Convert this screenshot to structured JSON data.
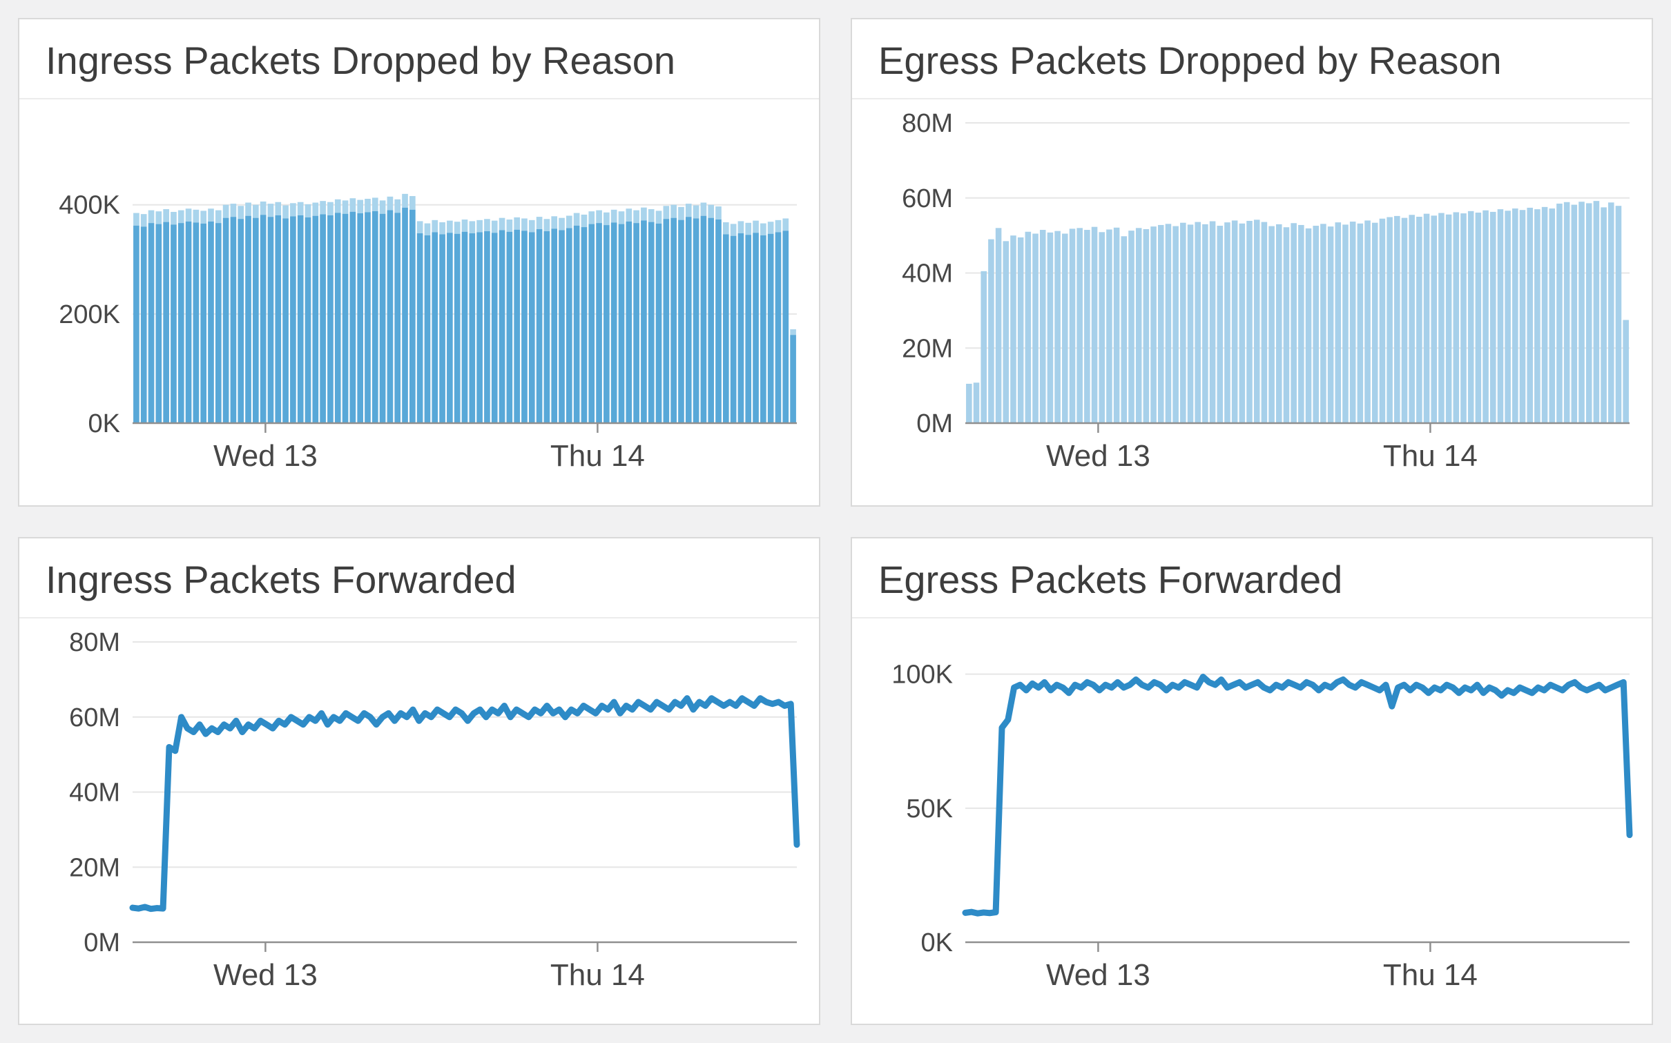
{
  "page": {
    "background_color": "#f1f1f2",
    "panel_background": "#ffffff",
    "panel_border_color": "#d9d9d9",
    "axis_color": "#8f8f8f",
    "grid_color": "#e6e6e6",
    "label_color": "#474747"
  },
  "chart_data": [
    {
      "type": "bar",
      "title": "Ingress Packets Dropped by Reason",
      "unit": "K",
      "ylim": [
        0,
        550
      ],
      "ytick_values": [
        0,
        200,
        400
      ],
      "ytick_labels": [
        "0K",
        "200K",
        "400K"
      ],
      "xticks": [
        {
          "label": "Wed 13",
          "pos": 0.2
        },
        {
          "label": "Thu 14",
          "pos": 0.7
        }
      ],
      "bar_color": "#58a8d8",
      "bar_cap_color": "#a9d4ec",
      "cap_fraction": 0.06,
      "grid": true,
      "legend": "none",
      "values": [
        385,
        383,
        390,
        388,
        392,
        387,
        390,
        393,
        391,
        389,
        393,
        390,
        400,
        402,
        398,
        404,
        400,
        406,
        402,
        405,
        399,
        403,
        405,
        401,
        404,
        407,
        405,
        410,
        408,
        412,
        409,
        411,
        413,
        408,
        415,
        410,
        420,
        416,
        370,
        366,
        372,
        368,
        371,
        369,
        373,
        370,
        372,
        374,
        371,
        376,
        373,
        377,
        375,
        372,
        378,
        374,
        379,
        376,
        380,
        385,
        382,
        388,
        390,
        386,
        391,
        388,
        393,
        390,
        395,
        392,
        389,
        398,
        400,
        396,
        402,
        399,
        404,
        400,
        397,
        368,
        365,
        370,
        367,
        371,
        366,
        369,
        372,
        375,
        172
      ]
    },
    {
      "type": "bar",
      "title": "Egress Packets Dropped by Reason",
      "unit": "M",
      "ylim": [
        0,
        80
      ],
      "ytick_values": [
        0,
        20,
        40,
        60,
        80
      ],
      "ytick_labels": [
        "0M",
        "20M",
        "40M",
        "60M",
        "80M"
      ],
      "xticks": [
        {
          "label": "Wed 13",
          "pos": 0.2
        },
        {
          "label": "Thu 14",
          "pos": 0.7
        }
      ],
      "bar_color": "#a7d0ea",
      "grid": true,
      "legend": "none",
      "values": [
        10.5,
        10.8,
        40.5,
        49,
        52,
        48.5,
        50,
        49.5,
        51,
        50.5,
        51.5,
        50.8,
        51.2,
        50.5,
        51.8,
        52,
        51.5,
        52.3,
        50.9,
        51.6,
        52.1,
        49.8,
        51.3,
        52,
        51.7,
        52.4,
        52.8,
        53.1,
        52.5,
        53.4,
        52.9,
        53.6,
        53,
        53.8,
        52.6,
        53.5,
        54,
        53.2,
        53.9,
        54.2,
        53.6,
        52.5,
        53,
        52.2,
        53.3,
        52.8,
        51.9,
        52.6,
        53.1,
        52.4,
        53.5,
        52.9,
        53.7,
        53.2,
        54,
        53.4,
        54.5,
        54.9,
        55.2,
        54.7,
        55.5,
        55,
        55.8,
        55.3,
        56,
        55.6,
        56.2,
        55.9,
        56.5,
        56.1,
        56.7,
        56.3,
        57,
        56.6,
        57.2,
        56.8,
        57.4,
        57,
        57.6,
        57.2,
        58.5,
        58.9,
        58.2,
        59,
        58.6,
        59.2,
        57.5,
        58.8,
        57.9,
        27.5
      ]
    },
    {
      "type": "line",
      "title": "Ingress Packets Forwarded",
      "unit": "M",
      "ylim": [
        0,
        80
      ],
      "ytick_values": [
        0,
        20,
        40,
        60,
        80
      ],
      "ytick_labels": [
        "0M",
        "20M",
        "40M",
        "60M",
        "80M"
      ],
      "xticks": [
        {
          "label": "Wed 13",
          "pos": 0.2
        },
        {
          "label": "Thu 14",
          "pos": 0.7
        }
      ],
      "line_color": "#2e8bc7",
      "line_width": 9,
      "grid": true,
      "legend": "none",
      "values": [
        9.2,
        9,
        9.4,
        8.9,
        9.1,
        9,
        52,
        51,
        60,
        57,
        56,
        58,
        55.5,
        57,
        56,
        58,
        57,
        59,
        56,
        58,
        57,
        59,
        58,
        57,
        59,
        58,
        60,
        59,
        58,
        60,
        59,
        61,
        58,
        60,
        59,
        61,
        60,
        59,
        61,
        60,
        58,
        60,
        61,
        59,
        61,
        60,
        62,
        59,
        61,
        60,
        62,
        61,
        60,
        62,
        61,
        59,
        61,
        62,
        60,
        62,
        61,
        63,
        60,
        62,
        61,
        60,
        62,
        61,
        63,
        61,
        62,
        60,
        62,
        61,
        63,
        62,
        61,
        63,
        62,
        64,
        61,
        63,
        62,
        64,
        63,
        62,
        64,
        63,
        62,
        64,
        63,
        65,
        62,
        64,
        63,
        65,
        64,
        63,
        64,
        63,
        65,
        64,
        63,
        65,
        64,
        63.5,
        64,
        63,
        63.5,
        26
      ]
    },
    {
      "type": "line",
      "title": "Egress Packets Forwarded",
      "unit": "K",
      "ylim": [
        0,
        112
      ],
      "ytick_values": [
        0,
        50,
        100
      ],
      "ytick_labels": [
        "0K",
        "50K",
        "100K"
      ],
      "xticks": [
        {
          "label": "Wed 13",
          "pos": 0.2
        },
        {
          "label": "Thu 14",
          "pos": 0.7
        }
      ],
      "line_color": "#2e8bc7",
      "line_width": 9,
      "grid": true,
      "legend": "none",
      "values": [
        11,
        11.3,
        10.8,
        11.1,
        10.9,
        11.2,
        80,
        83,
        95,
        96,
        94,
        96.5,
        95,
        97,
        94,
        96,
        95,
        93,
        96,
        95,
        97,
        96,
        94,
        96,
        95,
        97,
        95,
        96,
        98,
        96,
        95,
        97,
        96,
        94,
        96,
        95,
        97,
        96,
        95,
        99,
        97,
        96,
        98,
        95,
        96,
        97,
        95,
        96,
        97,
        95,
        94,
        96,
        95,
        97,
        96,
        95,
        97,
        96,
        94,
        96,
        95,
        97,
        98,
        96,
        95,
        97,
        96,
        95,
        94,
        96,
        88,
        95,
        96,
        94,
        96,
        95,
        93,
        95,
        94,
        96,
        95,
        93,
        95,
        94,
        96,
        93,
        95,
        94,
        92,
        94,
        93,
        95,
        94,
        93,
        95,
        94,
        96,
        95,
        94,
        96,
        97,
        95,
        94,
        95,
        96,
        94,
        95,
        96,
        97,
        40
      ]
    }
  ]
}
